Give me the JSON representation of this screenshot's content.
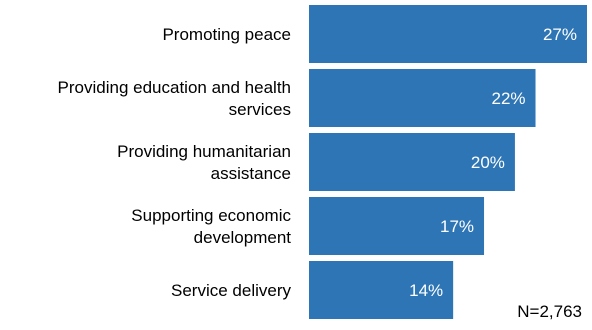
{
  "chart_data": {
    "type": "bar",
    "orientation": "horizontal",
    "categories": [
      [
        "Promoting peace"
      ],
      [
        "Providing education and health",
        "services"
      ],
      [
        "Providing humanitarian",
        "assistance"
      ],
      [
        "Supporting economic",
        "development"
      ],
      [
        "Service delivery"
      ]
    ],
    "values": [
      27,
      22,
      20,
      17,
      14
    ],
    "value_labels": [
      "27%",
      "22%",
      "20%",
      "17%",
      "14%"
    ],
    "xlim": [
      0,
      27
    ],
    "bar_color": "#2e75b6",
    "value_label_color": "#ffffff",
    "category_label_color": "#000000",
    "grid": false,
    "axes_visible": false,
    "note": "N=2,763"
  }
}
